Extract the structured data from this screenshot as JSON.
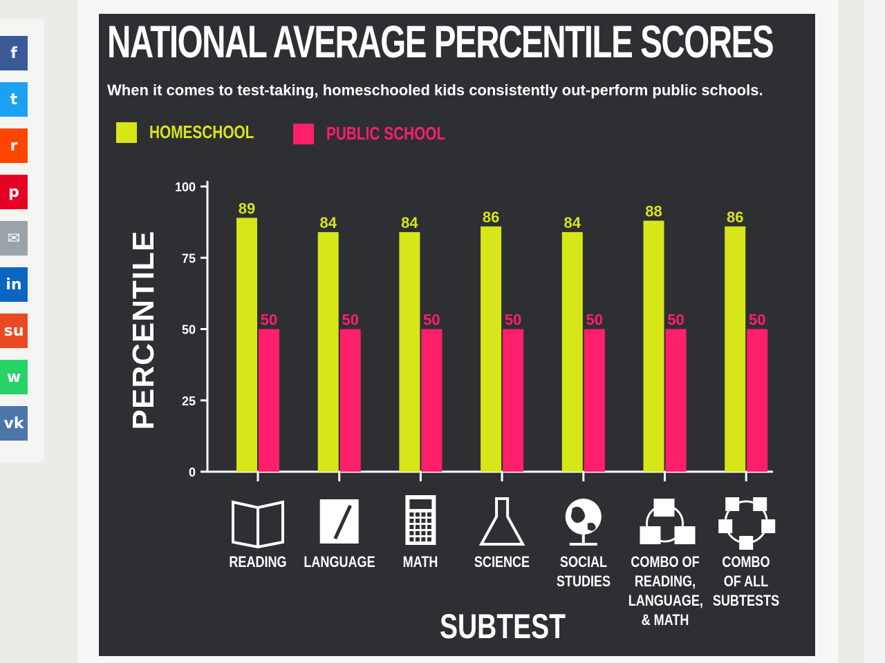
{
  "share_bar": [
    {
      "name": "facebook",
      "glyph": "f",
      "color": "#3b5998"
    },
    {
      "name": "twitter",
      "glyph": "t",
      "color": "#1da1f2"
    },
    {
      "name": "reddit",
      "glyph": "r",
      "color": "#ff4500"
    },
    {
      "name": "pinterest",
      "glyph": "p",
      "color": "#e60023"
    },
    {
      "name": "email",
      "glyph": "✉",
      "color": "#9aa3a8"
    },
    {
      "name": "linkedin",
      "glyph": "in",
      "color": "#0a66c2"
    },
    {
      "name": "stumbleupon",
      "glyph": "su",
      "color": "#eb4924"
    },
    {
      "name": "whatsapp",
      "glyph": "w",
      "color": "#25d366"
    },
    {
      "name": "vk",
      "glyph": "vk",
      "color": "#4a76a8"
    }
  ],
  "chart_data": {
    "type": "bar",
    "title": "NATIONAL AVERAGE PERCENTILE SCORES",
    "subtitle": "When it comes to test-taking, homeschooled kids consistently out-perform public schools.",
    "xlabel": "SUBTEST",
    "ylabel": "PERCENTILE",
    "ylim": [
      0,
      100
    ],
    "yticks": [
      0,
      25,
      50,
      75,
      100
    ],
    "grid": false,
    "legend_position": "top-left",
    "categories": [
      "READING",
      "LANGUAGE",
      "MATH",
      "SCIENCE",
      "SOCIAL\nSTUDIES",
      "COMBO OF\nREADING,\nLANGUAGE,\n& MATH",
      "COMBO\nOF ALL\nSUBTESTS"
    ],
    "category_icons": [
      "book-icon",
      "notepad-pen-icon",
      "calculator-icon",
      "flask-icon",
      "globe-icon",
      "combo-reading-language-math-icon",
      "combo-all-subtests-icon"
    ],
    "series": [
      {
        "name": "HOMESCHOOL",
        "color": "#d7e619",
        "values": [
          89,
          84,
          84,
          86,
          84,
          88,
          86
        ]
      },
      {
        "name": "PUBLIC SCHOOL",
        "color": "#ff1f6b",
        "values": [
          50,
          50,
          50,
          50,
          50,
          50,
          50
        ]
      }
    ]
  }
}
